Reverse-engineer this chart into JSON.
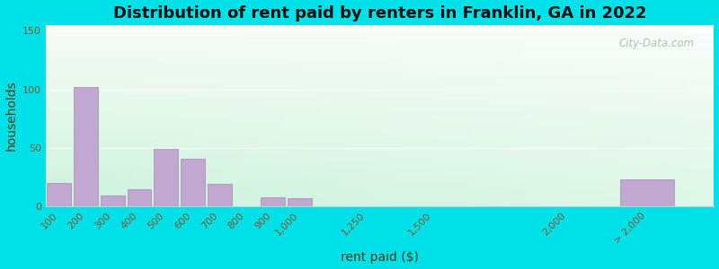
{
  "title": "Distribution of rent paid by renters in Franklin, GA in 2022",
  "xlabel": "rent paid ($)",
  "ylabel": "households",
  "bar_color": "#c0a8d0",
  "bar_edge_color": "#a888b8",
  "categories": [
    "100",
    "200",
    "300",
    "400",
    "500",
    "600",
    "700",
    "800",
    "900",
    "1,000",
    "1,250",
    "1,500",
    "2,000",
    "> 2,000"
  ],
  "x_positions": [
    100,
    200,
    300,
    400,
    500,
    600,
    700,
    800,
    900,
    1000,
    1250,
    1500,
    2000,
    2300
  ],
  "bar_widths": [
    90,
    90,
    90,
    90,
    90,
    90,
    90,
    90,
    90,
    90,
    90,
    90,
    90,
    200
  ],
  "values": [
    20,
    102,
    9,
    15,
    49,
    41,
    19,
    0,
    8,
    7,
    0,
    0,
    0,
    23
  ],
  "ylim": [
    0,
    155
  ],
  "yticks": [
    0,
    50,
    100,
    150
  ],
  "xlim": [
    50,
    2550
  ],
  "bg_outer": "#00e0e8",
  "watermark": "City-Data.com",
  "title_fontsize": 13,
  "axis_label_fontsize": 10,
  "tick_fontsize": 8,
  "tick_color": "#7a5a3a",
  "label_color": "#5a3a1a"
}
